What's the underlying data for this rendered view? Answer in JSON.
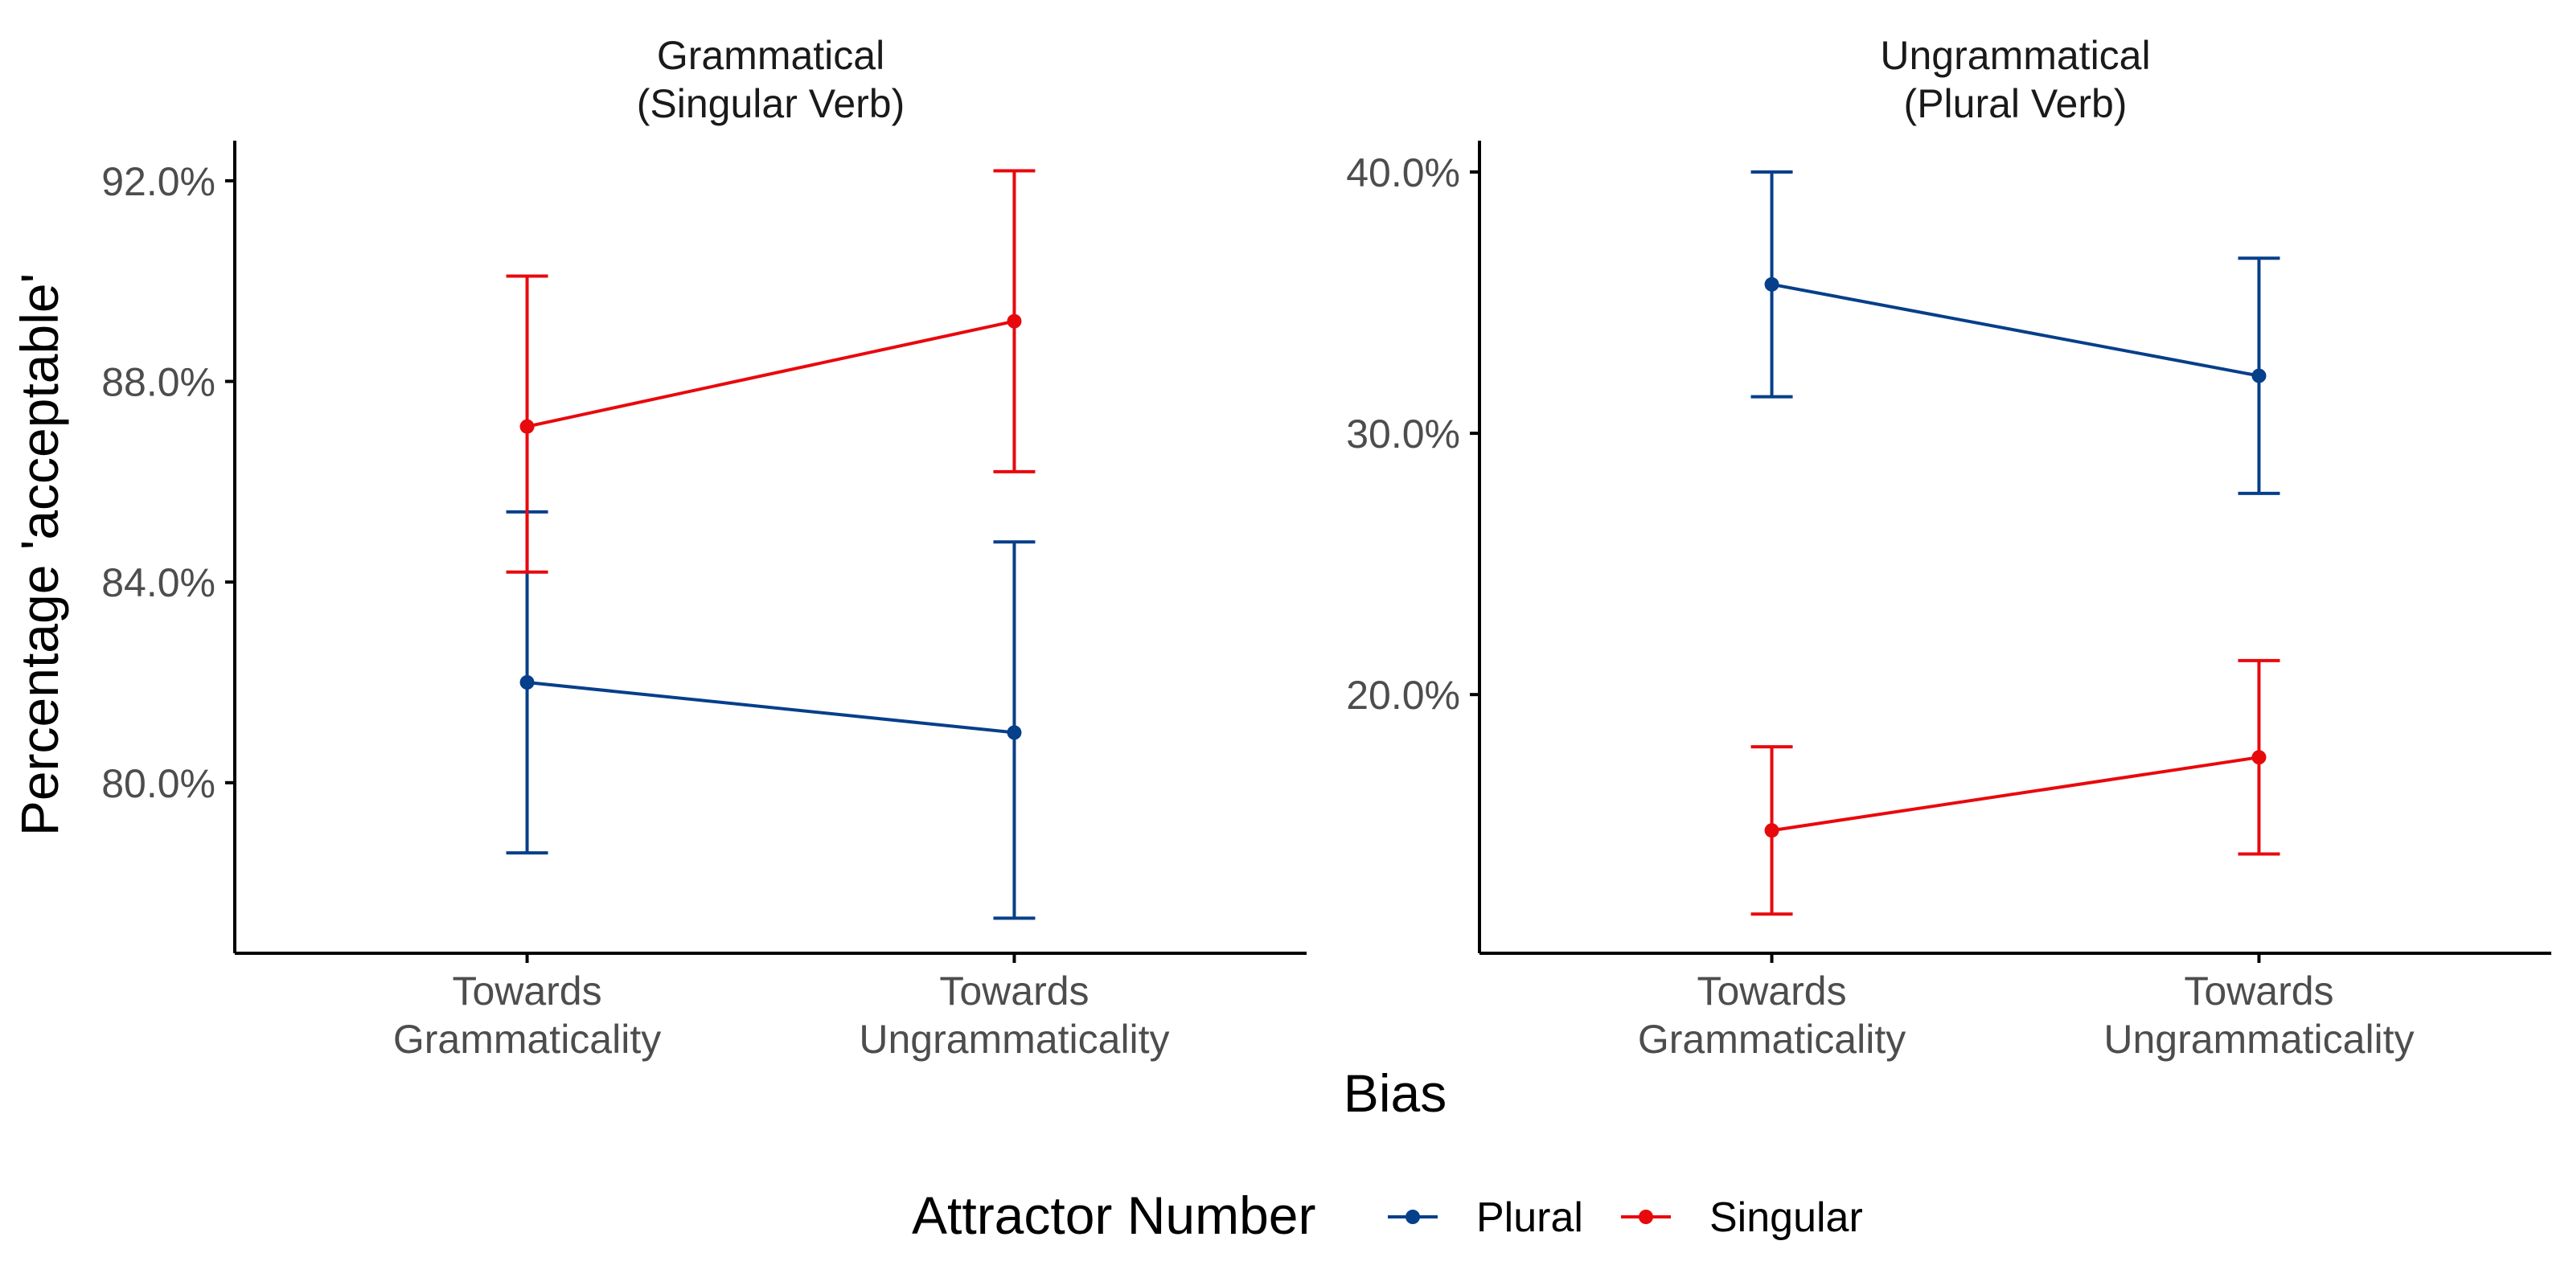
{
  "chart_data": {
    "type": "line",
    "y_axis_title": "Percentage 'acceptable'",
    "x_axis_title": "Bias",
    "categories": [
      "Towards\nGrammaticality",
      "Towards\nUngrammaticality"
    ],
    "legend": {
      "title": "Attractor Number",
      "position": "bottom",
      "entries": [
        {
          "name": "Plural",
          "color": "#063f8a"
        },
        {
          "name": "Singular",
          "color": "#e8090d"
        }
      ]
    },
    "grid": false,
    "panels": [
      {
        "title": "Grammatical\n(Singular Verb)",
        "ylim": [
          76.6,
          92.8
        ],
        "yticks": [
          80.0,
          84.0,
          88.0,
          92.0
        ],
        "ytick_labels": [
          "80.0%",
          "84.0%",
          "88.0%",
          "92.0%"
        ],
        "series": [
          {
            "name": "Plural",
            "color": "#063f8a",
            "values": [
              82.0,
              81.0
            ],
            "lower": [
              78.6,
              77.3
            ],
            "upper": [
              85.4,
              84.8
            ]
          },
          {
            "name": "Singular",
            "color": "#e8090d",
            "values": [
              87.1,
              89.2
            ],
            "lower": [
              84.2,
              86.2
            ],
            "upper": [
              90.1,
              92.2
            ]
          }
        ]
      },
      {
        "title": "Ungrammatical\n(Plural Verb)",
        "ylim": [
          10.1,
          41.2
        ],
        "yticks": [
          20.0,
          30.0,
          40.0
        ],
        "ytick_labels": [
          "20.0%",
          "30.0%",
          "40.0%"
        ],
        "series": [
          {
            "name": "Plural",
            "color": "#063f8a",
            "values": [
              35.7,
              32.2
            ],
            "lower": [
              31.4,
              27.7
            ],
            "upper": [
              40.0,
              36.7
            ]
          },
          {
            "name": "Singular",
            "color": "#e8090d",
            "values": [
              14.8,
              17.6
            ],
            "lower": [
              11.6,
              13.9
            ],
            "upper": [
              18.0,
              21.3
            ]
          }
        ]
      }
    ]
  }
}
